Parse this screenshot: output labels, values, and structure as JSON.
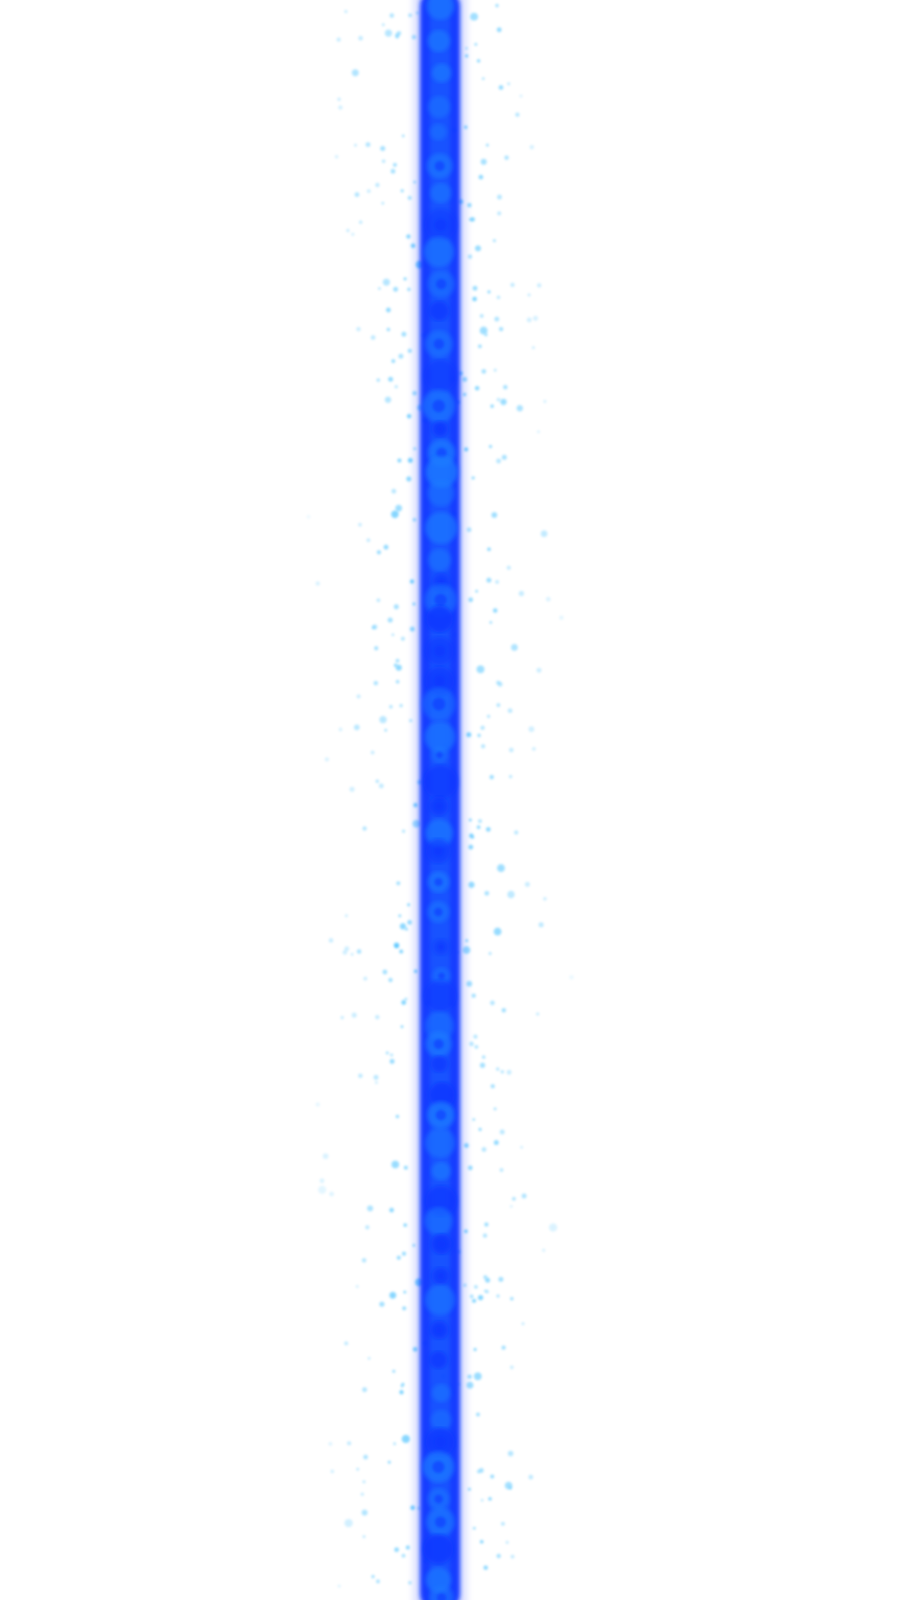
{
  "scene": {
    "background_color": "#ffffff",
    "beam": {
      "core_color": "#0a35ff",
      "highlight_color": "#1f7cff",
      "orientation": "vertical"
    },
    "particles": {
      "color": "#2ab7ff"
    }
  }
}
